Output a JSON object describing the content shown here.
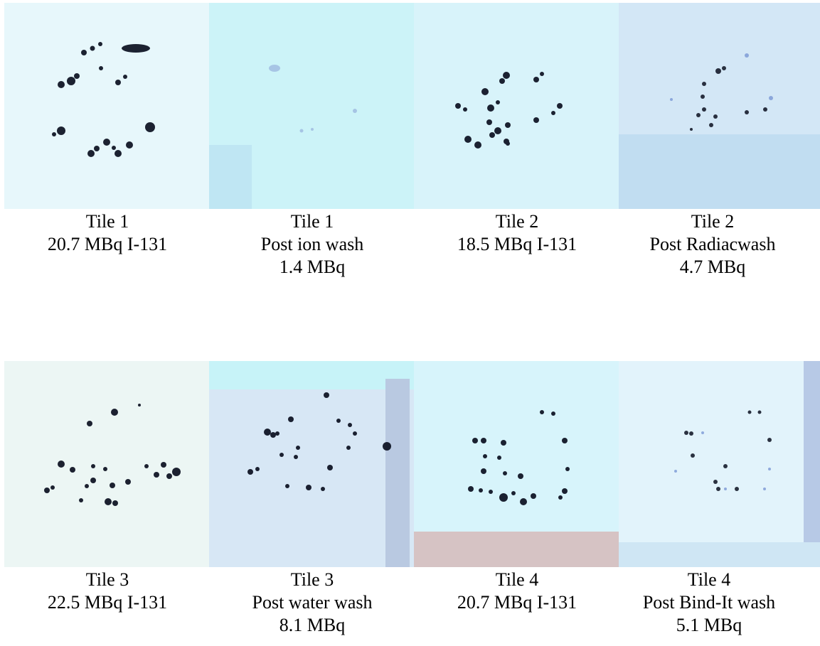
{
  "row1": {
    "panels": [
      {
        "lines": [
          "Tile 1",
          "20.7 MBq I-131"
        ]
      },
      {
        "lines": [
          "Tile 1",
          "Post ion wash",
          "1.4 MBq"
        ]
      },
      {
        "lines": [
          "Tile 2",
          "18.5 MBq I-131"
        ]
      },
      {
        "lines": [
          "Tile 2",
          "Post Radiacwash",
          "4.7 MBq"
        ]
      }
    ]
  },
  "row2": {
    "panels": [
      {
        "lines": [
          "Tile 3",
          "22.5 MBq I-131"
        ]
      },
      {
        "lines": [
          "Tile 3",
          "Post water wash",
          "8.1 MBq"
        ]
      },
      {
        "lines": [
          "Tile 4",
          "20.7 MBq I-131"
        ]
      },
      {
        "lines": [
          "Tile 4",
          "Post Bind-It wash",
          "5.1 MBq"
        ]
      }
    ]
  },
  "colors": {
    "tile_background": "#e6f6fb",
    "spot_color": "#0a0f1e",
    "faded_spot_color": "#4d6fb8"
  }
}
